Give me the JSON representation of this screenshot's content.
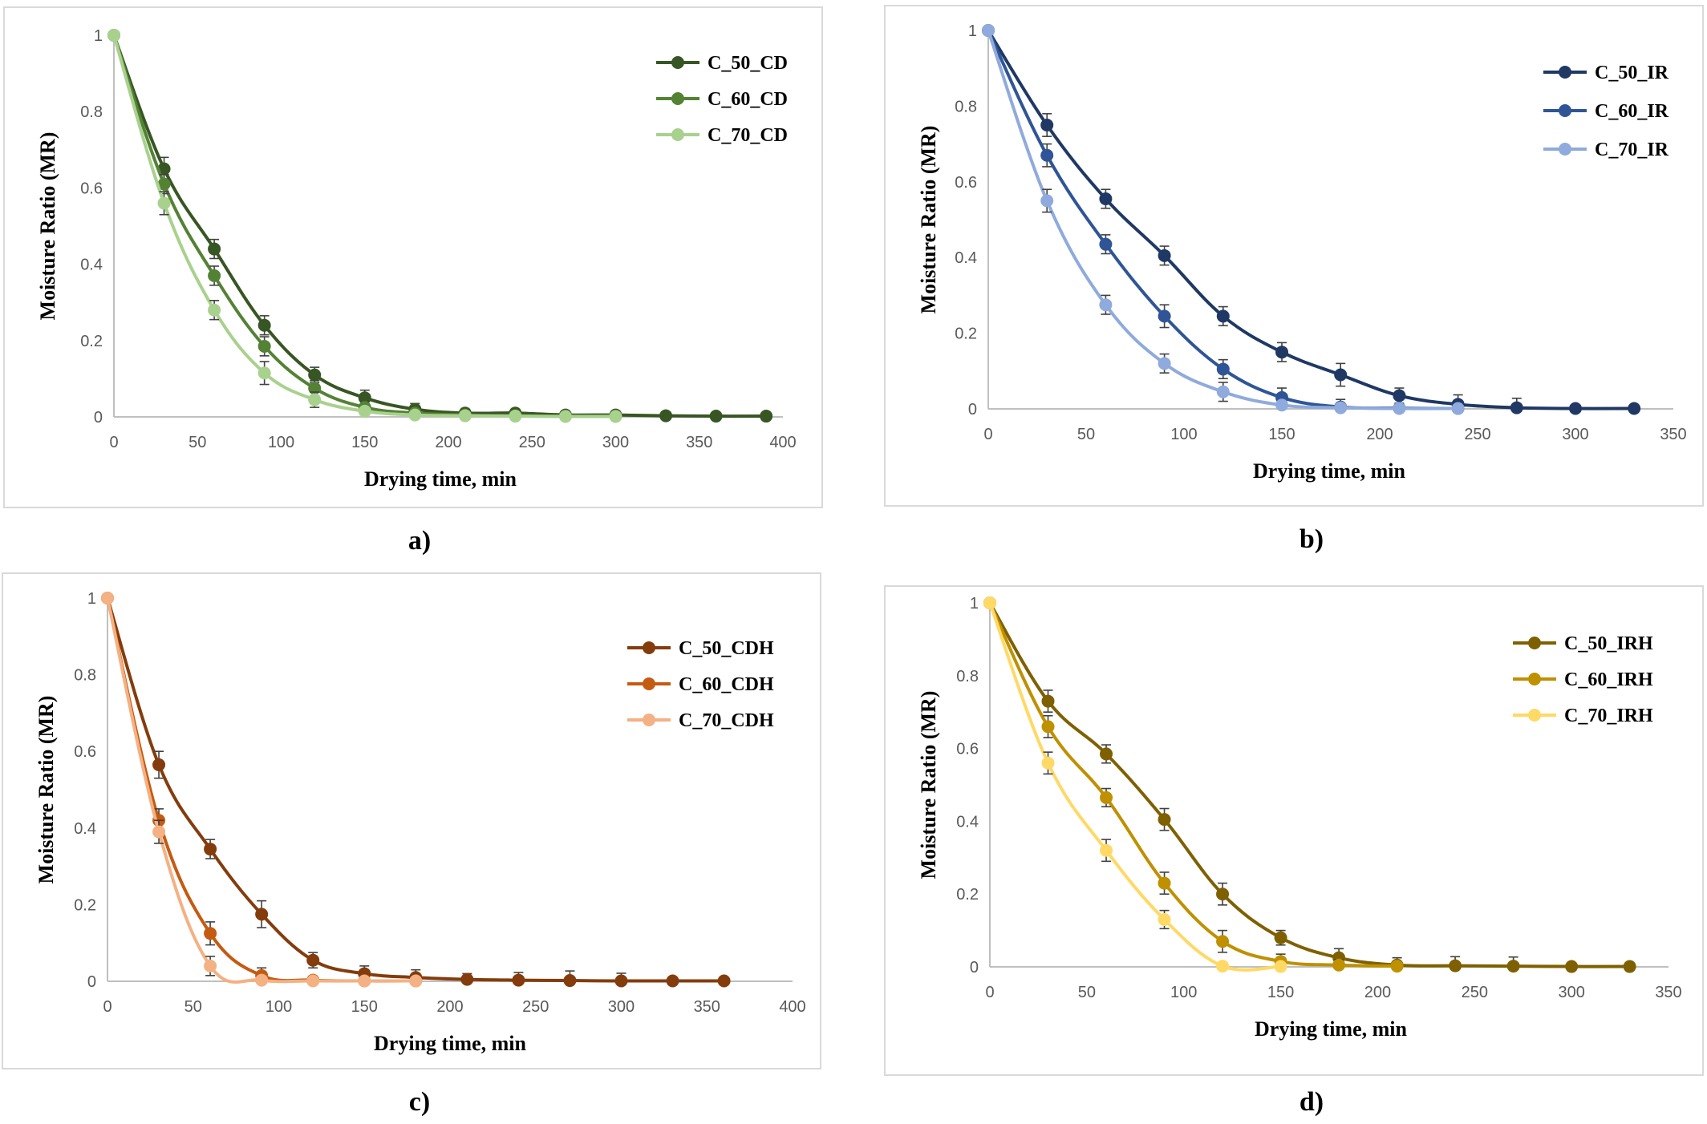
{
  "chart_data": [
    {
      "panel": "a",
      "type": "line",
      "caption": "a)",
      "xlabel": "Drying time, min",
      "ylabel": "Moisture Ratio (MR)",
      "xlim": [
        0,
        400
      ],
      "ylim": [
        0,
        1
      ],
      "xticks": [
        "0",
        "50",
        "100",
        "150",
        "200",
        "250",
        "300",
        "350",
        "400"
      ],
      "yticks": [
        "0",
        "0.2",
        "0.4",
        "0.6",
        "0.8",
        "1"
      ],
      "legend": "right",
      "series": [
        {
          "name": "C_50_CD",
          "color": "#375623",
          "x": [
            0,
            30,
            60,
            90,
            120,
            150,
            180,
            210,
            240,
            270,
            300,
            330,
            360,
            390
          ],
          "y": [
            1,
            0.65,
            0.44,
            0.24,
            0.11,
            0.05,
            0.02,
            0.01,
            0.01,
            0.005,
            0.005,
            0.003,
            0.002,
            0.002
          ],
          "err": [
            0,
            0.03,
            0.025,
            0.025,
            0.02,
            0.02,
            0.015,
            0.01,
            0.01,
            0.01,
            0.01,
            0.01,
            0,
            0
          ]
        },
        {
          "name": "C_60_CD",
          "color": "#548235",
          "x": [
            0,
            30,
            60,
            90,
            120,
            150,
            180,
            210,
            240,
            270,
            300
          ],
          "y": [
            1,
            0.61,
            0.37,
            0.185,
            0.075,
            0.025,
            0.01,
            0.005,
            0.003,
            0.002,
            0.002
          ],
          "err": [
            0,
            0.025,
            0.025,
            0.025,
            0.02,
            0.015,
            0.01,
            0.01,
            0.01,
            0.01,
            0.01
          ]
        },
        {
          "name": "C_70_CD",
          "color": "#a9d18e",
          "x": [
            0,
            30,
            60,
            90,
            120,
            150,
            180,
            210,
            240,
            270,
            300
          ],
          "y": [
            1,
            0.56,
            0.28,
            0.115,
            0.045,
            0.015,
            0.005,
            0.003,
            0.002,
            0.001,
            0.001
          ],
          "err": [
            0,
            0.03,
            0.025,
            0.03,
            0.02,
            0.01,
            0.01,
            0.01,
            0.01,
            0.01,
            0.01
          ]
        }
      ]
    },
    {
      "panel": "b",
      "type": "line",
      "caption": "b)",
      "xlabel": "Drying time, min",
      "ylabel": "Moisture Ratio (MR)",
      "xlim": [
        0,
        350
      ],
      "ylim": [
        0,
        1
      ],
      "xticks": [
        "0",
        "50",
        "100",
        "150",
        "200",
        "250",
        "300",
        "350"
      ],
      "yticks": [
        "0",
        "0.2",
        "0.4",
        "0.6",
        "0.8",
        "1"
      ],
      "legend": "top-right",
      "series": [
        {
          "name": "C_50_IR",
          "color": "#1f3864",
          "x": [
            0,
            30,
            60,
            90,
            120,
            150,
            180,
            210,
            240,
            270,
            300,
            330
          ],
          "y": [
            1,
            0.75,
            0.555,
            0.405,
            0.245,
            0.15,
            0.09,
            0.035,
            0.012,
            0.003,
            0.001,
            0.001
          ],
          "err": [
            0,
            0.03,
            0.025,
            0.025,
            0.025,
            0.025,
            0.03,
            0.02,
            0.025,
            0.025,
            0,
            0
          ]
        },
        {
          "name": "C_60_IR",
          "color": "#2f5597",
          "x": [
            0,
            30,
            60,
            90,
            120,
            150,
            180,
            210,
            240
          ],
          "y": [
            1,
            0.67,
            0.435,
            0.245,
            0.105,
            0.03,
            0.005,
            0.002,
            0.001
          ],
          "err": [
            0,
            0.03,
            0.025,
            0.03,
            0.025,
            0.025,
            0.02,
            0.01,
            0.01
          ]
        },
        {
          "name": "C_70_IR",
          "color": "#8faadc",
          "x": [
            0,
            30,
            60,
            90,
            120,
            150,
            180,
            210,
            240
          ],
          "y": [
            1,
            0.55,
            0.275,
            0.12,
            0.045,
            0.01,
            0.003,
            0.001,
            0.001
          ],
          "err": [
            0,
            0.03,
            0.025,
            0.025,
            0.025,
            0.01,
            0.01,
            0.01,
            0.01
          ]
        }
      ]
    },
    {
      "panel": "c",
      "type": "line",
      "caption": "c)",
      "xlabel": "Drying time, min",
      "ylabel": "Moisture Ratio (MR)",
      "xlim": [
        0,
        400
      ],
      "ylim": [
        0,
        1
      ],
      "xticks": [
        "0",
        "50",
        "100",
        "150",
        "200",
        "250",
        "300",
        "350",
        "400"
      ],
      "yticks": [
        "0",
        "0.2",
        "0.4",
        "0.6",
        "0.8",
        "1"
      ],
      "legend": "right",
      "series": [
        {
          "name": "C_50_CDH",
          "color": "#843c0c",
          "x": [
            0,
            30,
            60,
            90,
            120,
            150,
            180,
            210,
            240,
            270,
            300,
            330,
            360
          ],
          "y": [
            1,
            0.565,
            0.345,
            0.175,
            0.055,
            0.02,
            0.01,
            0.005,
            0.003,
            0.002,
            0.001,
            0.001,
            0.001
          ],
          "err": [
            0,
            0.035,
            0.025,
            0.035,
            0.02,
            0.02,
            0.02,
            0.015,
            0.02,
            0.025,
            0.02,
            0,
            0
          ]
        },
        {
          "name": "C_60_CDH",
          "color": "#c55a11",
          "x": [
            0,
            30,
            60,
            90,
            120,
            150,
            180
          ],
          "y": [
            1,
            0.42,
            0.125,
            0.015,
            0.003,
            0.001,
            0.001
          ],
          "err": [
            0,
            0.03,
            0.03,
            0.02,
            0.01,
            0.01,
            0.01
          ]
        },
        {
          "name": "C_70_CDH",
          "color": "#f4b183",
          "x": [
            0,
            30,
            60,
            90,
            120,
            150,
            180
          ],
          "y": [
            1,
            0.39,
            0.04,
            0.003,
            0.001,
            0.001,
            0.001
          ],
          "err": [
            0,
            0.03,
            0.025,
            0.01,
            0.01,
            0.01,
            0.01
          ]
        }
      ]
    },
    {
      "panel": "d",
      "type": "line",
      "caption": "d)",
      "xlabel": "Drying time, min",
      "ylabel": "Moisture Ratio (MR)",
      "xlim": [
        0,
        350
      ],
      "ylim": [
        0,
        1
      ],
      "xticks": [
        "0",
        "50",
        "100",
        "150",
        "200",
        "250",
        "300",
        "350"
      ],
      "yticks": [
        "0",
        "0.2",
        "0.4",
        "0.6",
        "0.8",
        "1"
      ],
      "legend": "top-right",
      "series": [
        {
          "name": "C_50_IRH",
          "color": "#7f6000",
          "x": [
            0,
            30,
            60,
            90,
            120,
            150,
            180,
            210,
            240,
            270,
            300,
            330
          ],
          "y": [
            1,
            0.73,
            0.585,
            0.405,
            0.2,
            0.08,
            0.025,
            0.005,
            0.003,
            0.002,
            0.001,
            0.001
          ],
          "err": [
            0,
            0.03,
            0.025,
            0.03,
            0.03,
            0.02,
            0.025,
            0.02,
            0.025,
            0.025,
            0,
            0
          ]
        },
        {
          "name": "C_60_IRH",
          "color": "#bf9000",
          "x": [
            0,
            30,
            60,
            90,
            120,
            150,
            180,
            210
          ],
          "y": [
            1,
            0.66,
            0.465,
            0.23,
            0.07,
            0.015,
            0.005,
            0.002
          ],
          "err": [
            0,
            0.03,
            0.025,
            0.03,
            0.03,
            0.02,
            0.015,
            0.01
          ]
        },
        {
          "name": "C_70_IRH",
          "color": "#ffd966",
          "x": [
            0,
            30,
            60,
            90,
            120,
            150
          ],
          "y": [
            1,
            0.56,
            0.32,
            0.13,
            0.002,
            0.001
          ],
          "err": [
            0,
            0.03,
            0.03,
            0.025,
            0.01,
            0.01
          ]
        }
      ]
    }
  ]
}
